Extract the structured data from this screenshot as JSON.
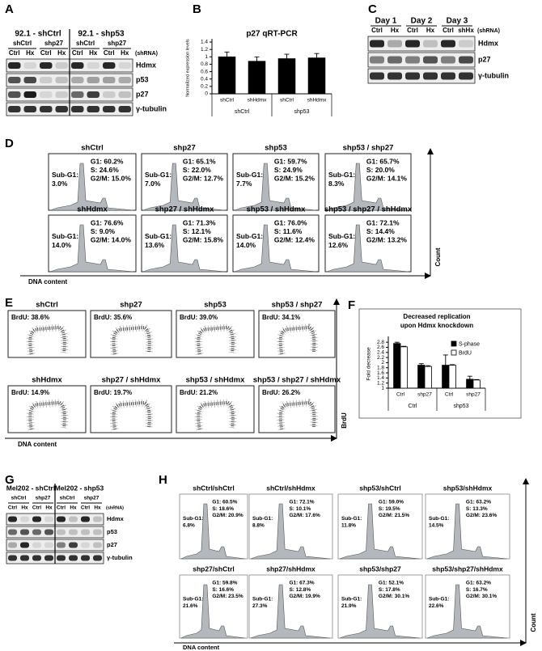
{
  "panel_labels": [
    "A",
    "B",
    "C",
    "D",
    "E",
    "F",
    "G",
    "H"
  ],
  "panel_a": {
    "groups": [
      "92.1 - shCtrl",
      "92.1 - shp53"
    ],
    "subgroups": [
      "shCtrl",
      "shp27",
      "shCtrl",
      "shp27"
    ],
    "lanes": [
      "Ctrl",
      "Hx",
      "Ctrl",
      "Hx",
      "Ctrl",
      "Hx",
      "Ctrl",
      "Hx"
    ],
    "shrna_label": "(shRNA)",
    "rows": [
      "Hdmx",
      "p53",
      "p27",
      "γ-tubulin"
    ]
  },
  "chart_data": [
    {
      "type": "bar",
      "title": "p27 qRT-PCR",
      "y_label": "Normalized expression levels",
      "categories": [
        "shCtrl",
        "shHdmx",
        "shCtrl",
        "shHdmx"
      ],
      "groups": [
        "shCtrl",
        "shp53"
      ],
      "values": [
        1,
        0.88,
        0.95,
        0.97
      ],
      "errors": [
        0.13,
        0.12,
        0.12,
        0.12
      ],
      "color": "#000000",
      "ylim": [
        0,
        1.4
      ],
      "yticks": [
        0,
        0.2,
        0.4,
        0.6,
        0.8,
        1,
        1.2,
        1.4
      ],
      "grid": false
    },
    {
      "type": "bar",
      "title": [
        "Decreased replication",
        "upon Hdmx knockdown"
      ],
      "y_label": "Fold decrease",
      "categories": [
        "Ctrl",
        "shp27",
        "Ctrl",
        "shp27"
      ],
      "groups": [
        "Ctrl",
        "shp53"
      ],
      "series": [
        {
          "name": "S-phase",
          "color": "#000000",
          "values": [
            2.75,
            1.9,
            1.9,
            1.35
          ],
          "errors": [
            0.05,
            0.06,
            0.4,
            0.12
          ]
        },
        {
          "name": "BrdU",
          "color": "#ffffff",
          "values": [
            2.62,
            1.85,
            1.9,
            1.32
          ],
          "errors": [
            0.02,
            0.03,
            0.02,
            0.02
          ]
        }
      ],
      "ylim": [
        1,
        2.9
      ],
      "yticks": [
        1,
        1.2,
        1.4,
        1.6,
        1.8,
        2,
        2.2,
        2.4,
        2.6,
        2.8
      ],
      "grid": false,
      "legend": "upper right"
    }
  ],
  "panel_c": {
    "groups": [
      "Day 1",
      "Day 2",
      "Day 3"
    ],
    "lanes": [
      "Ctrl",
      "Hx",
      "Ctrl",
      "Hx",
      "Ctrl",
      "shHx"
    ],
    "shrna_label": "(shRNA)",
    "rows": [
      "Hdmx",
      "p27",
      "γ-tubulin"
    ]
  },
  "panel_d": {
    "sub_g1_label": "Sub-G1:",
    "x_label": "DNA content",
    "y_label": "Count",
    "plots": [
      {
        "title": "shCtrl",
        "g1": "G1: 60.2%",
        "s": "S: 24.6%",
        "g2m": "G2/M: 15.0%",
        "sub_g1": "3.0%"
      },
      {
        "title": "shp27",
        "g1": "G1: 65.1%",
        "s": "S: 22.0%",
        "g2m": "G2/M: 12.7%",
        "sub_g1": "7.0%"
      },
      {
        "title": "shp53",
        "g1": "G1: 59.7%",
        "s": "S: 24.9%",
        "g2m": "G2/M: 15.2%",
        "sub_g1": "7.7%"
      },
      {
        "title": "shp53 / shp27",
        "g1": "G1: 65.7%",
        "s": "S: 20.0%",
        "g2m": "G2/M: 14.1%",
        "sub_g1": "8.3%"
      },
      {
        "title": "shHdmx",
        "g1": "G1: 76.6%",
        "s": "S: 9.0%",
        "g2m": "G2/M: 14.0%",
        "sub_g1": "14.0%"
      },
      {
        "title": "shp27 / shHdmx",
        "g1": "G1: 71.3%",
        "s": "S: 12.1%",
        "g2m": "G2/M: 15.8%",
        "sub_g1": "13.6%"
      },
      {
        "title": "shp53 / shHdmx",
        "g1": "G1: 76.0%",
        "s": "S: 11.6%",
        "g2m": "G2/M: 12.4%",
        "sub_g1": "14.0%"
      },
      {
        "title": "shp53 / shp27 / shHdmx",
        "g1": "G1: 72.1%",
        "s": "S: 14.4%",
        "g2m": "G2/M: 13.2%",
        "sub_g1": "12.6%"
      }
    ]
  },
  "panel_e": {
    "x_label": "DNA content",
    "y_label": "BrdU",
    "plots": [
      {
        "title": "shCtrl",
        "brdu": "BrdU: 38.6%"
      },
      {
        "title": "shp27",
        "brdu": "BrdU: 35.6%"
      },
      {
        "title": "shp53",
        "brdu": "BrdU: 39.0%"
      },
      {
        "title": "shp53 / shp27",
        "brdu": "BrdU: 34.1%"
      },
      {
        "title": "shHdmx",
        "brdu": "BrdU: 14.9%"
      },
      {
        "title": "shp27 / shHdmx",
        "brdu": "BrdU: 19.7%"
      },
      {
        "title": "shp53 / shHdmx",
        "brdu": "BrdU: 21.2%"
      },
      {
        "title": "shp53 / shp27 / shHdmx",
        "brdu": "BrdU: 26.2%"
      }
    ]
  },
  "panel_g": {
    "groups": [
      "Mel202 - shCtrl",
      "Mel202 - shp53"
    ],
    "subgroups": [
      "shCtrl",
      "shp27",
      "shCtrl",
      "shp27"
    ],
    "lanes": [
      "Ctrl",
      "Hx",
      "Ctrl",
      "Hx",
      "Ctrl",
      "Hx",
      "Ctrl",
      "Hx"
    ],
    "shrna_label": "(shRNA)",
    "rows": [
      "Hdmx",
      "p53",
      "p27",
      "γ-tubulin"
    ]
  },
  "panel_h": {
    "sub_g1_label": "Sub-G1:",
    "x_label": "DNA content",
    "y_label": "Count",
    "plots": [
      {
        "title": "shCtrl/shCtrl",
        "g1": "G1: 60.5%",
        "s": "S: 18.6%",
        "g2m": "G2/M: 20.9%",
        "sub_g1": "6.8%"
      },
      {
        "title": "shCtrl/shHdmx",
        "g1": "G1: 72.1%",
        "s": "S: 10.1%",
        "g2m": "G2/M: 17.6%",
        "sub_g1": "8.8%"
      },
      {
        "title": "shp53/shCtrl",
        "g1": "G1: 59.0%",
        "s": "S: 19.5%",
        "g2m": "G2/M: 21.5%",
        "sub_g1": "11.8%"
      },
      {
        "title": "shp53/shHdmx",
        "g1": "G1: 63.2%",
        "s": "S: 13.3%",
        "g2m": "G2/M: 23.6%",
        "sub_g1": "14.5%"
      },
      {
        "title": "shp27/shCtrl",
        "g1": "G1: 59.8%",
        "s": "S: 16.6%",
        "g2m": "G2/M: 23.5%",
        "sub_g1": "21.6%"
      },
      {
        "title": "shp27/shHdmx",
        "g1": "G1: 67.3%",
        "s": "S: 12.8%",
        "g2m": "G2/M: 19.9%",
        "sub_g1": "27.3%"
      },
      {
        "title": "shp53/shp27",
        "g1": "G1: 52.1%",
        "s": "S: 17.8%",
        "g2m": "G2/M: 30.1%",
        "sub_g1": "21.9%"
      },
      {
        "title": "shp53/shp27/shHdmx",
        "g1": "G1: 63.2%",
        "s": "S: 16.7%",
        "g2m": "G2/M: 30.1%",
        "sub_g1": "22.6%"
      }
    ]
  }
}
